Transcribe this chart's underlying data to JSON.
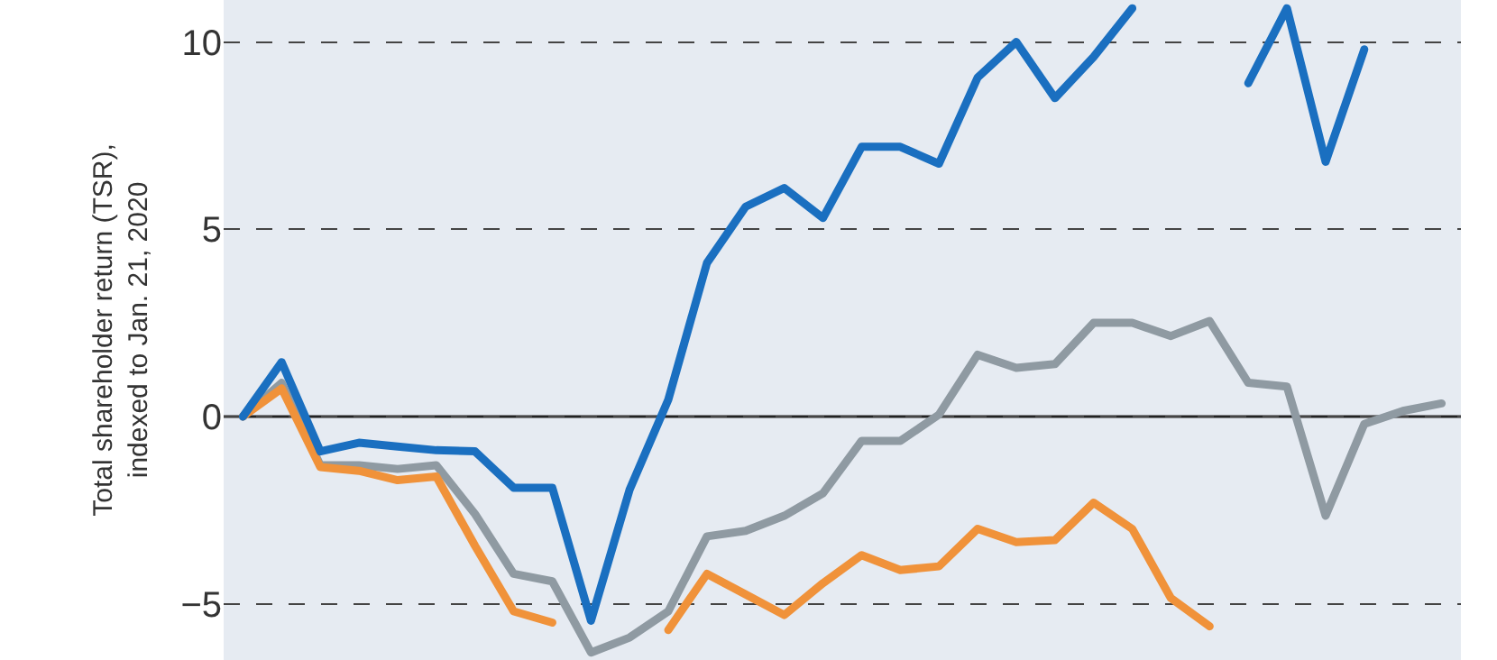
{
  "chart_data": {
    "type": "line",
    "ylabel": "Total shareholder return (TSR),\nindexed to Jan. 21, 2020",
    "categories": [
      null,
      null,
      null,
      null,
      null,
      null,
      null,
      null,
      null,
      null,
      null,
      null,
      null,
      null,
      null,
      null,
      null,
      null,
      null,
      null,
      null,
      null,
      null,
      null,
      null,
      null,
      null,
      null,
      null,
      null,
      null,
      null
    ],
    "series": [
      {
        "color": "#8f9aa2",
        "values": [
          0,
          0.9,
          -1.3,
          -1.3,
          -1.4,
          -1.3,
          -2.6,
          -4.2,
          -4.4,
          -6.3,
          -5.9,
          -5.2,
          -3.2,
          -3.05,
          -2.65,
          -2.05,
          -0.65,
          -0.65,
          0.05,
          1.65,
          1.3,
          1.4,
          2.5,
          2.5,
          2.15,
          2.55,
          0.9,
          0.8,
          -2.65,
          -0.2,
          0.15,
          0.35
        ]
      },
      {
        "color": "#f0923a",
        "values": [
          0,
          0.75,
          -1.35,
          -1.45,
          -1.7,
          -1.6,
          -3.45,
          -5.2,
          -5.5,
          null,
          null,
          -5.7,
          -4.2,
          -4.75,
          -5.3,
          -4.45,
          -3.7,
          -4.1,
          -4.0,
          -3.0,
          -3.35,
          -3.3,
          -2.3,
          -3.0,
          -4.85,
          -5.6,
          null,
          null,
          null,
          null,
          null,
          null
        ]
      },
      {
        "color": "#1a6fc0",
        "values": [
          0,
          1.45,
          -0.93,
          -0.7,
          -0.8,
          -0.9,
          -0.93,
          -1.9,
          -1.9,
          -5.45,
          -1.95,
          0.45,
          4.1,
          5.6,
          6.1,
          5.3,
          7.2,
          7.2,
          6.75,
          9.05,
          10.0,
          8.5,
          9.6,
          10.9,
          null,
          null,
          8.9,
          10.9,
          6.8,
          9.8,
          null,
          null
        ]
      }
    ],
    "ylim": [
      -6.5,
      11.12
    ],
    "yticks": [
      {
        "value": -5,
        "label": "−5"
      },
      0,
      5,
      10
    ],
    "grid": "y",
    "tick_labels": "y",
    "line_style": "solid",
    "marker": "none",
    "ref_lines": [
      {
        "axis": "y",
        "value": 0,
        "color": "#222222",
        "line_style": "solid"
      }
    ]
  }
}
